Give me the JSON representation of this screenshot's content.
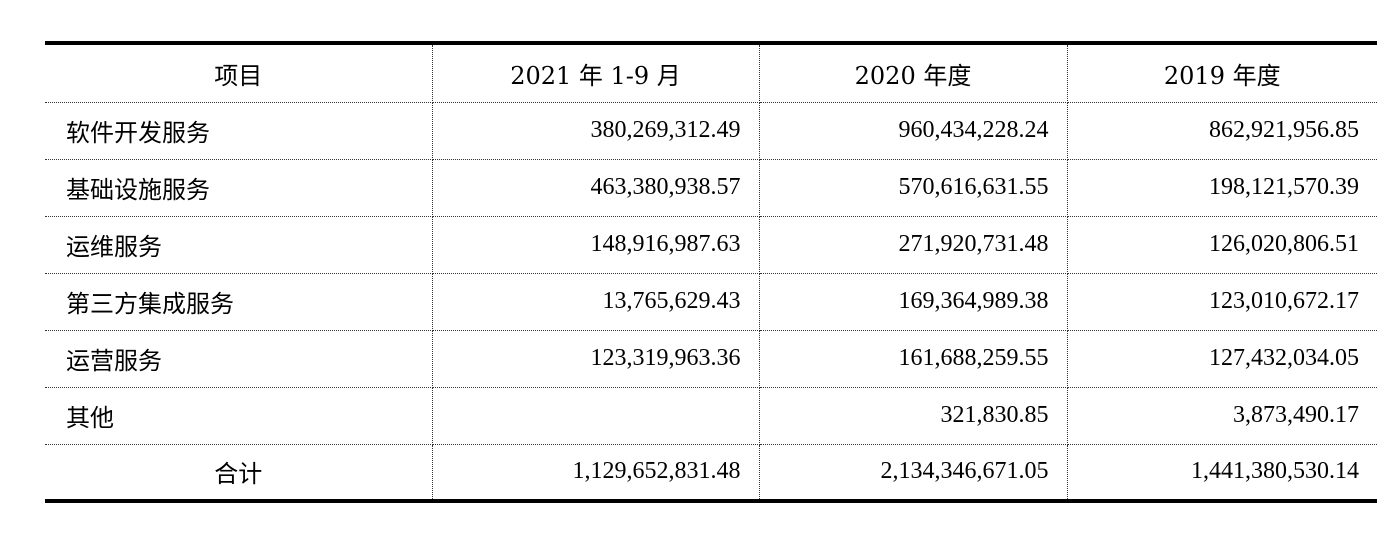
{
  "table": {
    "headers": [
      "项目",
      "2021 年 1-9 月",
      "2020 年度",
      "2019 年度"
    ],
    "rows": [
      {
        "item": "软件开发服务",
        "v2021": "380,269,312.49",
        "v2020": "960,434,228.24",
        "v2019": "862,921,956.85"
      },
      {
        "item": "基础设施服务",
        "v2021": "463,380,938.57",
        "v2020": "570,616,631.55",
        "v2019": "198,121,570.39"
      },
      {
        "item": "运维服务",
        "v2021": "148,916,987.63",
        "v2020": "271,920,731.48",
        "v2019": "126,020,806.51"
      },
      {
        "item": "第三方集成服务",
        "v2021": "13,765,629.43",
        "v2020": "169,364,989.38",
        "v2019": "123,010,672.17"
      },
      {
        "item": "运营服务",
        "v2021": "123,319,963.36",
        "v2020": "161,688,259.55",
        "v2019": "127,432,034.05"
      },
      {
        "item": "其他",
        "v2021": "",
        "v2020": "321,830.85",
        "v2019": "3,873,490.17"
      }
    ],
    "total": {
      "item": "合计",
      "v2021": "1,129,652,831.48",
      "v2020": "2,134,346,671.05",
      "v2019": "1,441,380,530.14"
    }
  }
}
